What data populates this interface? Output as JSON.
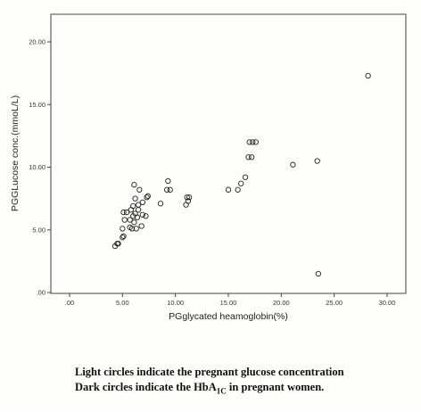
{
  "chart_data": {
    "type": "scatter",
    "title": "",
    "xlabel": "PGglycated heamoglobin(%)",
    "ylabel": "PGGLucose conc.(mmoL/L)",
    "xlim": [
      0,
      30
    ],
    "ylim": [
      0,
      20
    ],
    "xticks": [
      ".00",
      "5.00",
      "10.00",
      "15.00",
      "20.00",
      "25.00",
      "30.00"
    ],
    "yticks": [
      ".00",
      "5.00",
      "10.00",
      "15.00",
      "20.00"
    ],
    "grid": false,
    "marker": "open circle",
    "points": [
      {
        "x": 4.3,
        "y": 3.7
      },
      {
        "x": 4.5,
        "y": 3.9
      },
      {
        "x": 4.6,
        "y": 3.9
      },
      {
        "x": 5.0,
        "y": 4.4
      },
      {
        "x": 5.1,
        "y": 4.5
      },
      {
        "x": 5.0,
        "y": 5.1
      },
      {
        "x": 5.2,
        "y": 5.8
      },
      {
        "x": 5.1,
        "y": 6.4
      },
      {
        "x": 5.4,
        "y": 6.4
      },
      {
        "x": 5.7,
        "y": 5.2
      },
      {
        "x": 5.7,
        "y": 5.8
      },
      {
        "x": 5.8,
        "y": 6.6
      },
      {
        "x": 5.9,
        "y": 5.1
      },
      {
        "x": 6.0,
        "y": 6.1
      },
      {
        "x": 6.0,
        "y": 6.9
      },
      {
        "x": 6.1,
        "y": 5.6
      },
      {
        "x": 6.2,
        "y": 6.3
      },
      {
        "x": 6.2,
        "y": 7.5
      },
      {
        "x": 6.1,
        "y": 8.6
      },
      {
        "x": 6.3,
        "y": 5.1
      },
      {
        "x": 6.4,
        "y": 6.0
      },
      {
        "x": 6.5,
        "y": 6.6
      },
      {
        "x": 6.5,
        "y": 7.0
      },
      {
        "x": 6.6,
        "y": 8.2
      },
      {
        "x": 6.8,
        "y": 5.3
      },
      {
        "x": 6.9,
        "y": 6.2
      },
      {
        "x": 6.9,
        "y": 7.2
      },
      {
        "x": 7.2,
        "y": 6.1
      },
      {
        "x": 7.3,
        "y": 7.6
      },
      {
        "x": 7.4,
        "y": 7.7
      },
      {
        "x": 8.6,
        "y": 7.1
      },
      {
        "x": 9.2,
        "y": 8.2
      },
      {
        "x": 9.3,
        "y": 8.9
      },
      {
        "x": 9.5,
        "y": 8.2
      },
      {
        "x": 11.0,
        "y": 7.0
      },
      {
        "x": 11.1,
        "y": 7.6
      },
      {
        "x": 11.2,
        "y": 7.3
      },
      {
        "x": 11.3,
        "y": 7.6
      },
      {
        "x": 15.0,
        "y": 8.2
      },
      {
        "x": 15.9,
        "y": 8.2
      },
      {
        "x": 16.2,
        "y": 8.7
      },
      {
        "x": 16.6,
        "y": 9.2
      },
      {
        "x": 16.9,
        "y": 10.8
      },
      {
        "x": 17.2,
        "y": 10.8
      },
      {
        "x": 17.0,
        "y": 12.0
      },
      {
        "x": 17.3,
        "y": 12.0
      },
      {
        "x": 17.6,
        "y": 12.0
      },
      {
        "x": 21.1,
        "y": 10.2
      },
      {
        "x": 23.4,
        "y": 10.5
      },
      {
        "x": 23.5,
        "y": 1.5
      },
      {
        "x": 28.2,
        "y": 17.3
      }
    ]
  },
  "caption": {
    "line1": "Light circles indicate the pregnant glucose concentration",
    "line2_before": "Dark circles indicate the HbA",
    "line2_sub": "1C",
    "line2_after": " in pregnant women."
  }
}
